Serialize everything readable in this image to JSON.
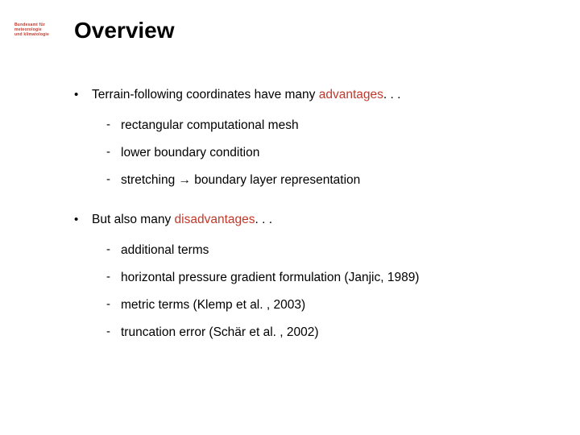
{
  "logo": {
    "line1": "Bundesamt für",
    "line2": "meteorologie",
    "line3": "und klimatologie"
  },
  "title": "Overview",
  "bullets": [
    {
      "prefix": "Terrain-following coordinates have many ",
      "emph": "advantages",
      "suffix": ". . .",
      "sub": [
        "rectangular computational mesh",
        "lower boundary condition",
        "stretching → boundary layer representation"
      ]
    },
    {
      "prefix": "But also many ",
      "emph": "disadvantages",
      "suffix": ". . .",
      "sub": [
        "additional terms",
        "horizontal pressure gradient formulation (Janjic, 1989)",
        "metric terms (Klemp et al. , 2003)",
        "truncation error (Schär et al. , 2002)"
      ]
    }
  ],
  "colors": {
    "emphasis": "#c0392b",
    "text": "#000000",
    "background": "#ffffff"
  }
}
